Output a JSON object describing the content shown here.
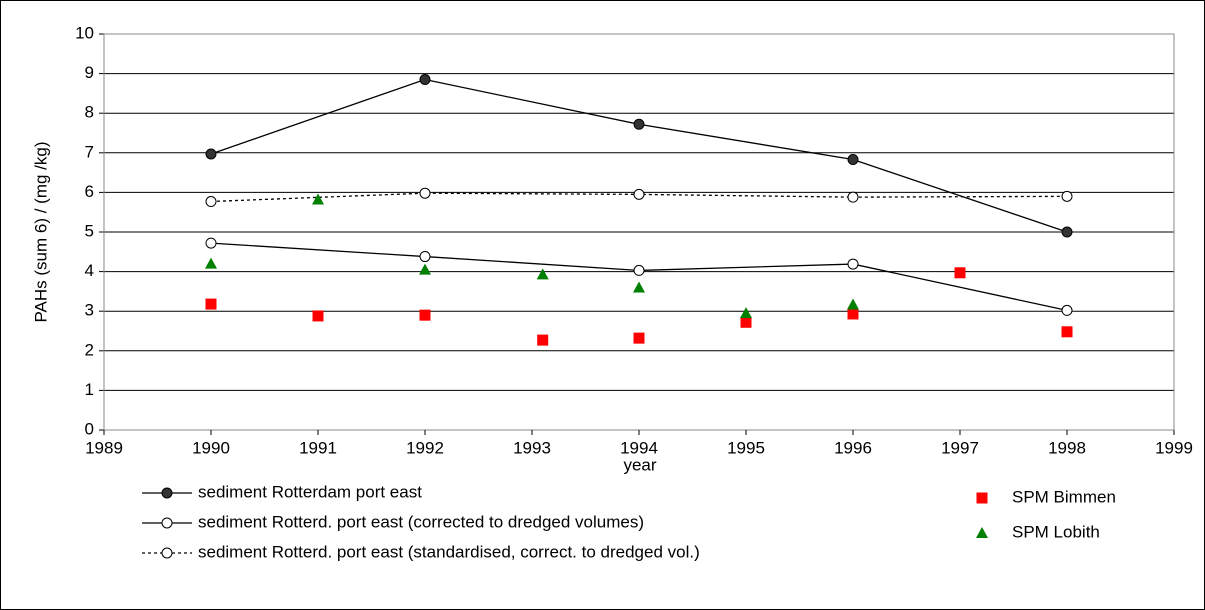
{
  "chart_data": {
    "type": "line",
    "xlabel": "year",
    "ylabel": "PAHs (sum 6) / (mg /kg)",
    "xlim": [
      1989,
      1999
    ],
    "xticks": [
      1989,
      1990,
      1991,
      1992,
      1993,
      1994,
      1995,
      1996,
      1997,
      1998,
      1999
    ],
    "ylim": [
      0,
      10
    ],
    "yticks": [
      0,
      1,
      2,
      3,
      4,
      5,
      6,
      7,
      8,
      9,
      10
    ],
    "grid": true,
    "series": [
      {
        "name": "sediment Rotterdam port east",
        "color": "#000000",
        "line": "solid",
        "marker": "circle",
        "marker_fill": "#333333",
        "x": [
          1990,
          1992,
          1994,
          1996,
          1998
        ],
        "values": [
          6.97,
          8.85,
          7.72,
          6.83,
          5.0
        ]
      },
      {
        "name": "sediment Rotterd. port east (corrected to dredged volumes)",
        "color": "#000000",
        "line": "solid",
        "marker": "circle",
        "marker_fill": "#ffffff",
        "x": [
          1990,
          1992,
          1994,
          1996,
          1998
        ],
        "values": [
          4.72,
          4.38,
          4.03,
          4.19,
          3.02
        ]
      },
      {
        "name": "sediment Rotterd. port east (standardised, correct. to dredged vol.)",
        "color": "#000000",
        "line": "dashed",
        "marker": "circle",
        "marker_fill": "#ffffff",
        "x": [
          1990,
          1992,
          1994,
          1996,
          1998
        ],
        "values": [
          5.77,
          5.98,
          5.95,
          5.88,
          5.9
        ]
      },
      {
        "name": "SPM Bimmen",
        "color": "#ff0000",
        "line": "none",
        "marker": "square",
        "marker_fill": "#ff0000",
        "x": [
          1990,
          1991,
          1992,
          1993.1,
          1994,
          1995,
          1996,
          1997,
          1998
        ],
        "values": [
          3.18,
          2.88,
          2.9,
          2.27,
          2.32,
          2.72,
          2.93,
          3.97,
          2.48
        ]
      },
      {
        "name": "SPM Lobith",
        "color": "#008000",
        "line": "none",
        "marker": "triangle",
        "marker_fill": "#008000",
        "x": [
          1990,
          1991,
          1992,
          1993.1,
          1994,
          1995,
          1996
        ],
        "values": [
          4.2,
          5.82,
          4.05,
          3.93,
          3.6,
          2.95,
          3.17
        ]
      }
    ]
  }
}
